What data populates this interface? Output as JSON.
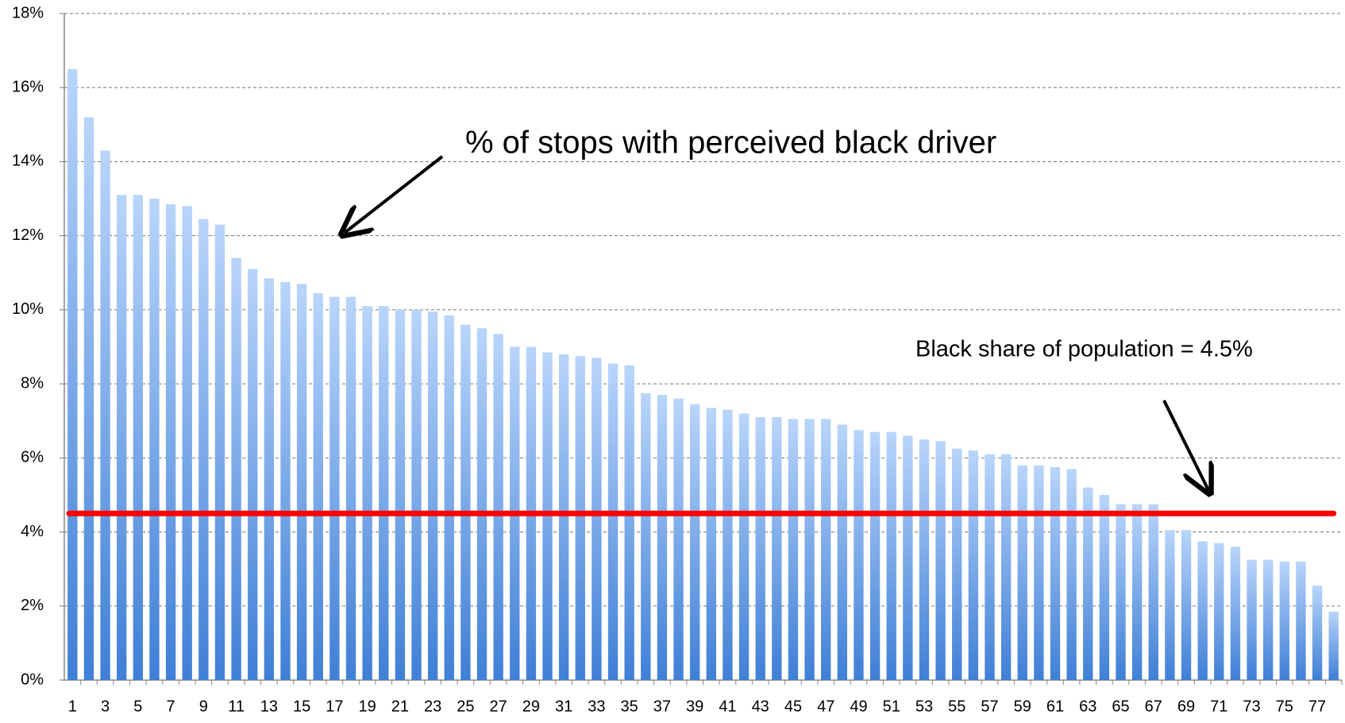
{
  "chart_data": {
    "type": "bar",
    "categories": [
      1,
      null,
      3,
      null,
      5,
      null,
      7,
      null,
      9,
      null,
      11,
      null,
      13,
      null,
      15,
      null,
      17,
      null,
      19,
      null,
      21,
      null,
      23,
      null,
      25,
      null,
      27,
      null,
      29,
      null,
      31,
      null,
      33,
      null,
      35,
      null,
      37,
      null,
      39,
      null,
      41,
      null,
      43,
      null,
      45,
      null,
      47,
      null,
      49,
      null,
      51,
      null,
      53,
      null,
      55,
      null,
      57,
      null,
      59,
      null,
      61,
      null,
      63,
      null,
      65,
      null,
      67,
      null,
      69,
      null,
      71,
      null,
      73,
      null,
      75,
      null,
      77,
      null
    ],
    "values": [
      16.5,
      15.2,
      14.3,
      13.1,
      13.1,
      13.0,
      12.85,
      12.8,
      12.45,
      12.3,
      11.4,
      11.1,
      10.85,
      10.75,
      10.7,
      10.45,
      10.35,
      10.35,
      10.1,
      10.1,
      10.0,
      10.0,
      9.95,
      9.85,
      9.6,
      9.5,
      9.35,
      9.0,
      9.0,
      8.85,
      8.8,
      8.75,
      8.7,
      8.55,
      8.5,
      7.75,
      7.7,
      7.6,
      7.45,
      7.35,
      7.3,
      7.2,
      7.1,
      7.1,
      7.05,
      7.05,
      7.05,
      6.9,
      6.75,
      6.7,
      6.7,
      6.6,
      6.5,
      6.45,
      6.25,
      6.2,
      6.1,
      6.1,
      5.8,
      5.8,
      5.75,
      5.7,
      5.2,
      5.0,
      4.75,
      4.75,
      4.75,
      4.05,
      4.05,
      3.75,
      3.7,
      3.6,
      3.25,
      3.25,
      3.2,
      3.2,
      2.55,
      1.85
    ],
    "color": "#3f7fd6",
    "ylim": [
      0,
      18
    ],
    "yticks": [
      {
        "value": 0,
        "label": "0%"
      },
      {
        "value": 2,
        "label": "2%"
      },
      {
        "value": 4,
        "label": "4%"
      },
      {
        "value": 6,
        "label": "6%"
      },
      {
        "value": 8,
        "label": "8%"
      },
      {
        "value": 10,
        "label": "10%"
      },
      {
        "value": 12,
        "label": "12%"
      },
      {
        "value": 14,
        "label": "14%"
      },
      {
        "value": 16,
        "label": "16%"
      },
      {
        "value": 18,
        "label": "18%"
      }
    ],
    "grid": true,
    "reference_line": {
      "value": 4.5,
      "color": "#ff0000"
    },
    "annotations": [
      "% of stops with perceived black driver",
      "Black share of population = 4.5%"
    ]
  }
}
